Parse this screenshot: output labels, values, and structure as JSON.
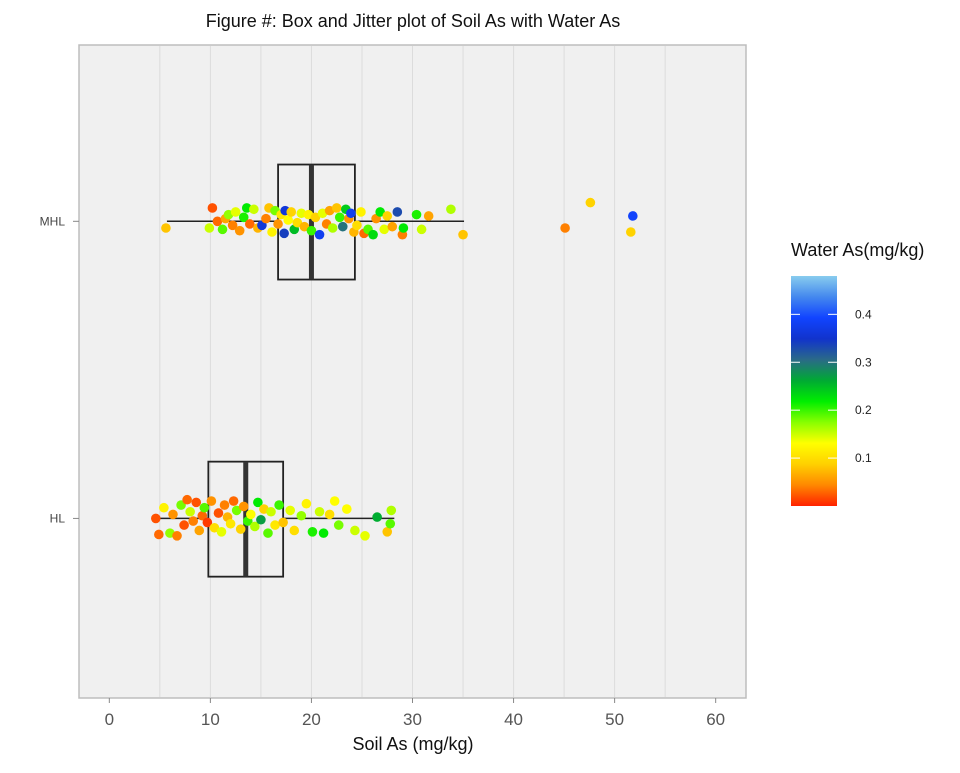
{
  "chart_data": {
    "type": "box-jitter",
    "orientation": "horizontal",
    "title": "Figure #: Box and Jitter plot of Soil As with Water As",
    "xlabel": "Soil As (mg/kg)",
    "ylabel": "",
    "xlim": [
      -3,
      63
    ],
    "xticks": [
      0,
      10,
      20,
      30,
      40,
      50,
      60
    ],
    "grid": true,
    "categories": [
      "MHL",
      "HL"
    ],
    "boxes": [
      {
        "category": "MHL",
        "whisker_low": 5.7,
        "q1": 16.7,
        "median": 20.0,
        "q3": 24.3,
        "whisker_high": 35.1
      },
      {
        "category": "HL",
        "whisker_low": 4.7,
        "q1": 9.8,
        "median": 13.5,
        "q3": 17.2,
        "whisker_high": 28.2
      }
    ],
    "legend": {
      "title": "Water As(mg/kg)",
      "position": "right",
      "ticks": [
        0.1,
        0.2,
        0.3,
        0.4
      ],
      "range": [
        0.0,
        0.48
      ],
      "colors": [
        "#ff2200",
        "#ff8800",
        "#ffd000",
        "#ffff00",
        "#88ff00",
        "#00ee00",
        "#00aa33",
        "#2a6a88",
        "#1133cc",
        "#1144ff",
        "#4488ee",
        "#88ccee"
      ]
    },
    "points": [
      {
        "category": "MHL",
        "x": 5.6,
        "offset": -0.05,
        "w": 0.08
      },
      {
        "category": "MHL",
        "x": 9.9,
        "offset": -0.05,
        "w": 0.15
      },
      {
        "category": "MHL",
        "x": 10.2,
        "offset": 0.1,
        "w": 0.02
      },
      {
        "category": "MHL",
        "x": 10.7,
        "offset": 0.0,
        "w": 0.03
      },
      {
        "category": "MHL",
        "x": 11.2,
        "offset": -0.06,
        "w": 0.19
      },
      {
        "category": "MHL",
        "x": 11.5,
        "offset": 0.02,
        "w": 0.06
      },
      {
        "category": "MHL",
        "x": 11.8,
        "offset": 0.05,
        "w": 0.17
      },
      {
        "category": "MHL",
        "x": 12.2,
        "offset": -0.03,
        "w": 0.04
      },
      {
        "category": "MHL",
        "x": 12.5,
        "offset": 0.07,
        "w": 0.14
      },
      {
        "category": "MHL",
        "x": 12.9,
        "offset": -0.07,
        "w": 0.05
      },
      {
        "category": "MHL",
        "x": 13.3,
        "offset": 0.03,
        "w": 0.21
      },
      {
        "category": "MHL",
        "x": 13.6,
        "offset": 0.1,
        "w": 0.22
      },
      {
        "category": "MHL",
        "x": 13.9,
        "offset": -0.02,
        "w": 0.03
      },
      {
        "category": "MHL",
        "x": 14.3,
        "offset": 0.09,
        "w": 0.15
      },
      {
        "category": "MHL",
        "x": 14.7,
        "offset": -0.05,
        "w": 0.07
      },
      {
        "category": "MHL",
        "x": 15.1,
        "offset": -0.03,
        "w": 0.36
      },
      {
        "category": "MHL",
        "x": 15.5,
        "offset": 0.02,
        "w": 0.04
      },
      {
        "category": "MHL",
        "x": 15.8,
        "offset": 0.1,
        "w": 0.08
      },
      {
        "category": "MHL",
        "x": 16.1,
        "offset": -0.08,
        "w": 0.12
      },
      {
        "category": "MHL",
        "x": 16.4,
        "offset": 0.08,
        "w": 0.18
      },
      {
        "category": "MHL",
        "x": 16.7,
        "offset": -0.02,
        "w": 0.05
      },
      {
        "category": "MHL",
        "x": 17.0,
        "offset": 0.05,
        "w": 0.11
      },
      {
        "category": "MHL",
        "x": 17.3,
        "offset": -0.09,
        "w": 0.34
      },
      {
        "category": "MHL",
        "x": 17.4,
        "offset": 0.08,
        "w": 0.36
      },
      {
        "category": "MHL",
        "x": 17.7,
        "offset": 0.01,
        "w": 0.13
      },
      {
        "category": "MHL",
        "x": 18.0,
        "offset": 0.07,
        "w": 0.09
      },
      {
        "category": "MHL",
        "x": 18.3,
        "offset": -0.06,
        "w": 0.25
      },
      {
        "category": "MHL",
        "x": 18.6,
        "offset": -0.01,
        "w": 0.1
      },
      {
        "category": "MHL",
        "x": 19.0,
        "offset": 0.06,
        "w": 0.14
      },
      {
        "category": "MHL",
        "x": 19.3,
        "offset": -0.04,
        "w": 0.07
      },
      {
        "category": "MHL",
        "x": 19.7,
        "offset": 0.05,
        "w": 0.12
      },
      {
        "category": "MHL",
        "x": 20.0,
        "offset": -0.07,
        "w": 0.2
      },
      {
        "category": "MHL",
        "x": 20.4,
        "offset": 0.03,
        "w": 0.09
      },
      {
        "category": "MHL",
        "x": 20.8,
        "offset": -0.1,
        "w": 0.38
      },
      {
        "category": "MHL",
        "x": 21.1,
        "offset": 0.06,
        "w": 0.14
      },
      {
        "category": "MHL",
        "x": 21.5,
        "offset": -0.02,
        "w": 0.04
      },
      {
        "category": "MHL",
        "x": 21.8,
        "offset": 0.08,
        "w": 0.06
      },
      {
        "category": "MHL",
        "x": 22.1,
        "offset": -0.05,
        "w": 0.16
      },
      {
        "category": "MHL",
        "x": 22.5,
        "offset": 0.1,
        "w": 0.08
      },
      {
        "category": "MHL",
        "x": 22.8,
        "offset": 0.03,
        "w": 0.2
      },
      {
        "category": "MHL",
        "x": 23.1,
        "offset": -0.04,
        "w": 0.3
      },
      {
        "category": "MHL",
        "x": 23.4,
        "offset": 0.09,
        "w": 0.24
      },
      {
        "category": "MHL",
        "x": 23.7,
        "offset": 0.02,
        "w": 0.05
      },
      {
        "category": "MHL",
        "x": 23.9,
        "offset": 0.06,
        "w": 0.38
      },
      {
        "category": "MHL",
        "x": 24.2,
        "offset": -0.08,
        "w": 0.07
      },
      {
        "category": "MHL",
        "x": 24.5,
        "offset": -0.03,
        "w": 0.1
      },
      {
        "category": "MHL",
        "x": 24.9,
        "offset": 0.07,
        "w": 0.12
      },
      {
        "category": "MHL",
        "x": 25.2,
        "offset": -0.09,
        "w": 0.03
      },
      {
        "category": "MHL",
        "x": 25.6,
        "offset": -0.06,
        "w": 0.19
      },
      {
        "category": "MHL",
        "x": 26.1,
        "offset": -0.1,
        "w": 0.23
      },
      {
        "category": "MHL",
        "x": 26.4,
        "offset": 0.02,
        "w": 0.05
      },
      {
        "category": "MHL",
        "x": 26.8,
        "offset": 0.07,
        "w": 0.22
      },
      {
        "category": "MHL",
        "x": 27.2,
        "offset": -0.06,
        "w": 0.14
      },
      {
        "category": "MHL",
        "x": 27.5,
        "offset": 0.04,
        "w": 0.09
      },
      {
        "category": "MHL",
        "x": 28.0,
        "offset": -0.04,
        "w": 0.06
      },
      {
        "category": "MHL",
        "x": 28.5,
        "offset": 0.07,
        "w": 0.33
      },
      {
        "category": "MHL",
        "x": 29.0,
        "offset": -0.1,
        "w": 0.04
      },
      {
        "category": "MHL",
        "x": 29.1,
        "offset": -0.05,
        "w": 0.22
      },
      {
        "category": "MHL",
        "x": 30.4,
        "offset": 0.05,
        "w": 0.21
      },
      {
        "category": "MHL",
        "x": 30.9,
        "offset": -0.06,
        "w": 0.15
      },
      {
        "category": "MHL",
        "x": 31.6,
        "offset": 0.04,
        "w": 0.06
      },
      {
        "category": "MHL",
        "x": 33.8,
        "offset": 0.09,
        "w": 0.16
      },
      {
        "category": "MHL",
        "x": 35.0,
        "offset": -0.1,
        "w": 0.08
      },
      {
        "category": "MHL",
        "x": 45.1,
        "offset": -0.05,
        "w": 0.04
      },
      {
        "category": "MHL",
        "x": 47.6,
        "offset": 0.14,
        "w": 0.09
      },
      {
        "category": "MHL",
        "x": 51.6,
        "offset": -0.08,
        "w": 0.09
      },
      {
        "category": "MHL",
        "x": 51.8,
        "offset": 0.04,
        "w": 0.39
      },
      {
        "category": "HL",
        "x": 4.6,
        "offset": 0.0,
        "w": 0.02
      },
      {
        "category": "HL",
        "x": 4.9,
        "offset": -0.12,
        "w": 0.03
      },
      {
        "category": "HL",
        "x": 5.4,
        "offset": 0.08,
        "w": 0.12
      },
      {
        "category": "HL",
        "x": 6.0,
        "offset": -0.11,
        "w": 0.17
      },
      {
        "category": "HL",
        "x": 6.3,
        "offset": 0.03,
        "w": 0.05
      },
      {
        "category": "HL",
        "x": 6.7,
        "offset": -0.13,
        "w": 0.04
      },
      {
        "category": "HL",
        "x": 7.1,
        "offset": 0.1,
        "w": 0.18
      },
      {
        "category": "HL",
        "x": 7.4,
        "offset": -0.05,
        "w": 0.02
      },
      {
        "category": "HL",
        "x": 7.7,
        "offset": 0.14,
        "w": 0.03
      },
      {
        "category": "HL",
        "x": 8.0,
        "offset": 0.05,
        "w": 0.15
      },
      {
        "category": "HL",
        "x": 8.3,
        "offset": -0.02,
        "w": 0.04
      },
      {
        "category": "HL",
        "x": 8.6,
        "offset": 0.12,
        "w": 0.02
      },
      {
        "category": "HL",
        "x": 8.9,
        "offset": -0.09,
        "w": 0.06
      },
      {
        "category": "HL",
        "x": 9.2,
        "offset": 0.02,
        "w": 0.03
      },
      {
        "category": "HL",
        "x": 9.4,
        "offset": 0.08,
        "w": 0.19
      },
      {
        "category": "HL",
        "x": 9.7,
        "offset": -0.03,
        "w": 0.01
      },
      {
        "category": "HL",
        "x": 10.1,
        "offset": 0.13,
        "w": 0.05
      },
      {
        "category": "HL",
        "x": 10.4,
        "offset": -0.07,
        "w": 0.1
      },
      {
        "category": "HL",
        "x": 10.8,
        "offset": 0.04,
        "w": 0.02
      },
      {
        "category": "HL",
        "x": 11.1,
        "offset": -0.1,
        "w": 0.14
      },
      {
        "category": "HL",
        "x": 11.4,
        "offset": 0.1,
        "w": 0.04
      },
      {
        "category": "HL",
        "x": 11.7,
        "offset": 0.01,
        "w": 0.07
      },
      {
        "category": "HL",
        "x": 12.0,
        "offset": -0.04,
        "w": 0.11
      },
      {
        "category": "HL",
        "x": 12.3,
        "offset": 0.13,
        "w": 0.03
      },
      {
        "category": "HL",
        "x": 12.6,
        "offset": 0.06,
        "w": 0.18
      },
      {
        "category": "HL",
        "x": 13.0,
        "offset": -0.08,
        "w": 0.09
      },
      {
        "category": "HL",
        "x": 13.3,
        "offset": 0.09,
        "w": 0.05
      },
      {
        "category": "HL",
        "x": 13.7,
        "offset": -0.02,
        "w": 0.2
      },
      {
        "category": "HL",
        "x": 14.0,
        "offset": 0.03,
        "w": 0.13
      },
      {
        "category": "HL",
        "x": 14.4,
        "offset": -0.06,
        "w": 0.16
      },
      {
        "category": "HL",
        "x": 14.7,
        "offset": 0.12,
        "w": 0.22
      },
      {
        "category": "HL",
        "x": 15.0,
        "offset": -0.01,
        "w": 0.27
      },
      {
        "category": "HL",
        "x": 15.3,
        "offset": 0.07,
        "w": 0.09
      },
      {
        "category": "HL",
        "x": 15.7,
        "offset": -0.11,
        "w": 0.19
      },
      {
        "category": "HL",
        "x": 16.0,
        "offset": 0.05,
        "w": 0.15
      },
      {
        "category": "HL",
        "x": 16.4,
        "offset": -0.05,
        "w": 0.11
      },
      {
        "category": "HL",
        "x": 16.8,
        "offset": 0.1,
        "w": 0.2
      },
      {
        "category": "HL",
        "x": 17.2,
        "offset": -0.03,
        "w": 0.08
      },
      {
        "category": "HL",
        "x": 17.9,
        "offset": 0.06,
        "w": 0.14
      },
      {
        "category": "HL",
        "x": 18.3,
        "offset": -0.09,
        "w": 0.1
      },
      {
        "category": "HL",
        "x": 19.0,
        "offset": 0.02,
        "w": 0.17
      },
      {
        "category": "HL",
        "x": 19.5,
        "offset": 0.11,
        "w": 0.12
      },
      {
        "category": "HL",
        "x": 20.1,
        "offset": -0.1,
        "w": 0.21
      },
      {
        "category": "HL",
        "x": 20.8,
        "offset": 0.05,
        "w": 0.15
      },
      {
        "category": "HL",
        "x": 21.2,
        "offset": -0.11,
        "w": 0.22
      },
      {
        "category": "HL",
        "x": 21.8,
        "offset": 0.03,
        "w": 0.1
      },
      {
        "category": "HL",
        "x": 22.3,
        "offset": 0.13,
        "w": 0.13
      },
      {
        "category": "HL",
        "x": 22.7,
        "offset": -0.05,
        "w": 0.18
      },
      {
        "category": "HL",
        "x": 23.5,
        "offset": 0.07,
        "w": 0.13
      },
      {
        "category": "HL",
        "x": 24.3,
        "offset": -0.09,
        "w": 0.15
      },
      {
        "category": "HL",
        "x": 25.3,
        "offset": -0.13,
        "w": 0.14
      },
      {
        "category": "HL",
        "x": 26.5,
        "offset": 0.01,
        "w": 0.26
      },
      {
        "category": "HL",
        "x": 27.5,
        "offset": -0.1,
        "w": 0.08
      },
      {
        "category": "HL",
        "x": 27.8,
        "offset": -0.04,
        "w": 0.19
      },
      {
        "category": "HL",
        "x": 27.9,
        "offset": 0.06,
        "w": 0.16
      }
    ]
  }
}
